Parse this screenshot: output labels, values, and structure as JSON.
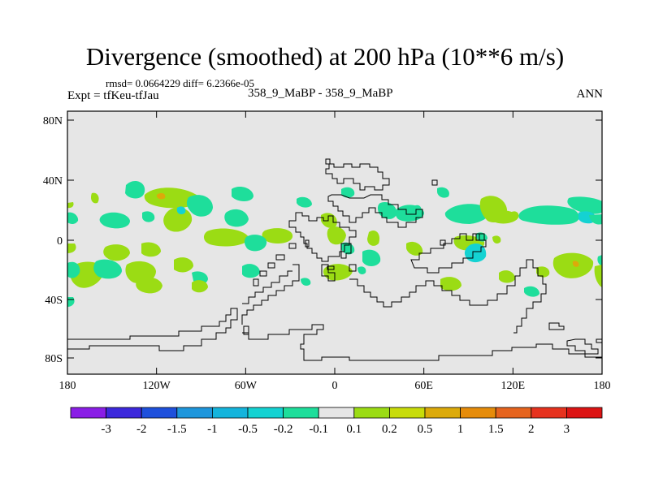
{
  "title": "Divergence (smoothed) at 200 hPa (10**6 m/s)",
  "stats": "rmsd= 0.0664229 diff= 6.2366e-05",
  "experiment": "Expt = tfKeu-tfJau",
  "case_label": "358_9_MaBP - 358_9_MaBP",
  "season": "ANN",
  "lat_ticks": [
    "80N",
    "40N",
    "0",
    "40S",
    "80S"
  ],
  "lon_ticks": [
    "180",
    "120W",
    "60W",
    "0",
    "60E",
    "120E",
    "180"
  ],
  "colorbar": {
    "labels": [
      "-3",
      "-2",
      "-1.5",
      "-1",
      "-0.5",
      "-0.2",
      "-0.1",
      "0.1",
      "0.2",
      "0.5",
      "1",
      "1.5",
      "2",
      "3"
    ],
    "colors": [
      "#8a1ee6",
      "#3c28dc",
      "#1e50dc",
      "#1e96dc",
      "#14b4dc",
      "#14d2d2",
      "#1ede9b",
      "#e6e6e6",
      "#9bdc14",
      "#c8dc0a",
      "#dcaa0a",
      "#e68c0a",
      "#e6641e",
      "#e6321e",
      "#dc1414"
    ]
  },
  "colors": {
    "background": "#e6e6e6",
    "neg_weak": "#1ede9b",
    "neg_mid": "#14d2d2",
    "pos_weak": "#9bdc14",
    "pos_mid": "#dcaa0a"
  }
}
